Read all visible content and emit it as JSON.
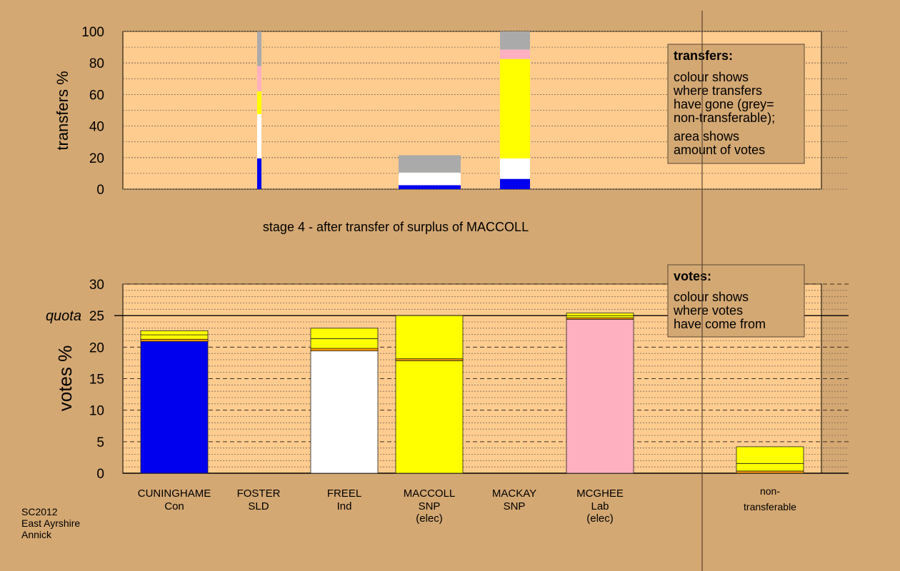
{
  "chart_data": [
    {
      "type": "bar",
      "stacked": true,
      "subtitle": "stage 4 - after transfer of surplus of MACCOLL",
      "ylabel": "transfers %",
      "ylim": [
        0,
        100
      ],
      "yticks": [
        0,
        20,
        40,
        60,
        80,
        100
      ],
      "grid": true,
      "legend_position": "top-right",
      "legend": {
        "title": "transfers:",
        "lines": [
          "colour shows",
          "where transfers",
          "have gone (grey=",
          "non-transferable);",
          "area shows",
          "amount of votes"
        ]
      },
      "categories": [
        "CUNINGHAME",
        "FOSTER",
        "FREEL",
        "MACCOLL",
        "MACKAY",
        "MCGHEE",
        "non-transferable"
      ],
      "bars": [
        {
          "category": "FOSTER",
          "width_share": 0.025,
          "segments": [
            {
              "color": "#0000ee",
              "value": 19.5
            },
            {
              "color": "#ffffff",
              "value": 28
            },
            {
              "color": "#ffff00",
              "value": 14.5
            },
            {
              "color": "#ffb0c0",
              "value": 16
            },
            {
              "color": "#aaaaaa",
              "value": 22
            }
          ]
        },
        {
          "category": "MACCOLL",
          "width_share": 0.37,
          "segments": [
            {
              "color": "#0000ee",
              "value": 2.5
            },
            {
              "color": "#ffffff",
              "value": 8
            },
            {
              "color": "#aaaaaa",
              "value": 11
            }
          ]
        },
        {
          "category": "MACKAY",
          "width_share": 0.45,
          "segments": [
            {
              "color": "#0000ee",
              "value": 6.5
            },
            {
              "color": "#ffffff",
              "value": 13
            },
            {
              "color": "#ffff00",
              "value": 63
            },
            {
              "color": "#ffb0c0",
              "value": 6
            },
            {
              "color": "#aaaaaa",
              "value": 11.5
            }
          ]
        }
      ]
    },
    {
      "type": "bar",
      "stacked": true,
      "ylabel": "votes %",
      "ylim": [
        0,
        30
      ],
      "yticks": [
        0,
        5,
        10,
        15,
        20,
        25,
        30
      ],
      "quota": 25,
      "quota_label": "quota",
      "grid": true,
      "legend_position": "top-right",
      "legend": {
        "title": "votes:",
        "lines": [
          "colour shows",
          "where votes",
          "have come from"
        ]
      },
      "categories": [
        {
          "name": "CUNINGHAME",
          "party": "Con",
          "note": ""
        },
        {
          "name": "FOSTER",
          "party": "SLD",
          "note": ""
        },
        {
          "name": "FREEL",
          "party": "Ind",
          "note": ""
        },
        {
          "name": "MACCOLL",
          "party": "SNP",
          "note": "(elec)"
        },
        {
          "name": "MACKAY",
          "party": "SNP",
          "note": ""
        },
        {
          "name": "MCGHEE",
          "party": "Lab",
          "note": "(elec)"
        },
        {
          "name": "non-",
          "party": "transferable",
          "note": ""
        }
      ],
      "bars": [
        {
          "category": "CUNINGHAME",
          "segments": [
            {
              "color": "#0000ee",
              "value": 20.9
            },
            {
              "color": "#ff9900",
              "value": 0.35
            },
            {
              "color": "#ffff00",
              "value": 0.7
            },
            {
              "color": "#ffff00",
              "value": 0.65
            }
          ]
        },
        {
          "category": "FOSTER",
          "segments": []
        },
        {
          "category": "FREEL",
          "segments": [
            {
              "color": "#ffffff",
              "value": 19.4
            },
            {
              "color": "#ff9900",
              "value": 0.4
            },
            {
              "color": "#ffff00",
              "value": 1.55
            },
            {
              "color": "#ffff00",
              "value": 1.65
            }
          ]
        },
        {
          "category": "MACCOLL",
          "segments": [
            {
              "color": "#ffff00",
              "value": 17.85
            },
            {
              "color": "#ff9900",
              "value": 0.3
            },
            {
              "color": "#ffff00",
              "value": 6.85
            }
          ]
        },
        {
          "category": "MACKAY",
          "segments": []
        },
        {
          "category": "MCGHEE",
          "segments": [
            {
              "color": "#ffb0c0",
              "value": 24.4
            },
            {
              "color": "#ff9900",
              "value": 0.25
            },
            {
              "color": "#ffff00",
              "value": 0.35
            },
            {
              "color": "#ffff00",
              "value": 0.4
            }
          ]
        },
        {
          "category": "non-transferable",
          "segments": [
            {
              "color": "#ff9900",
              "value": 0.35
            },
            {
              "color": "#ffff00",
              "value": 1.2
            },
            {
              "color": "#ffff00",
              "value": 2.65
            }
          ]
        }
      ]
    }
  ],
  "footer": {
    "lines": [
      "SC2012",
      "East Ayrshire",
      "Annick"
    ]
  }
}
